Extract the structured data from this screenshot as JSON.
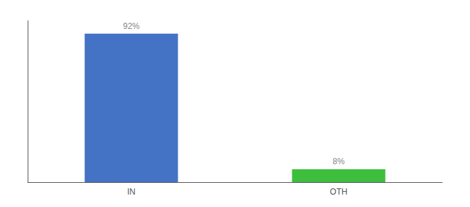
{
  "chart_data": {
    "type": "bar",
    "categories": [
      "IN",
      "OTH"
    ],
    "values": [
      92,
      8
    ],
    "colors": [
      "#4472C4",
      "#3DBE3D"
    ],
    "value_labels": [
      "92%",
      "8%"
    ],
    "data_labels": true,
    "ylim": [
      0,
      100
    ],
    "tick_labels": "x",
    "grid": false
  }
}
